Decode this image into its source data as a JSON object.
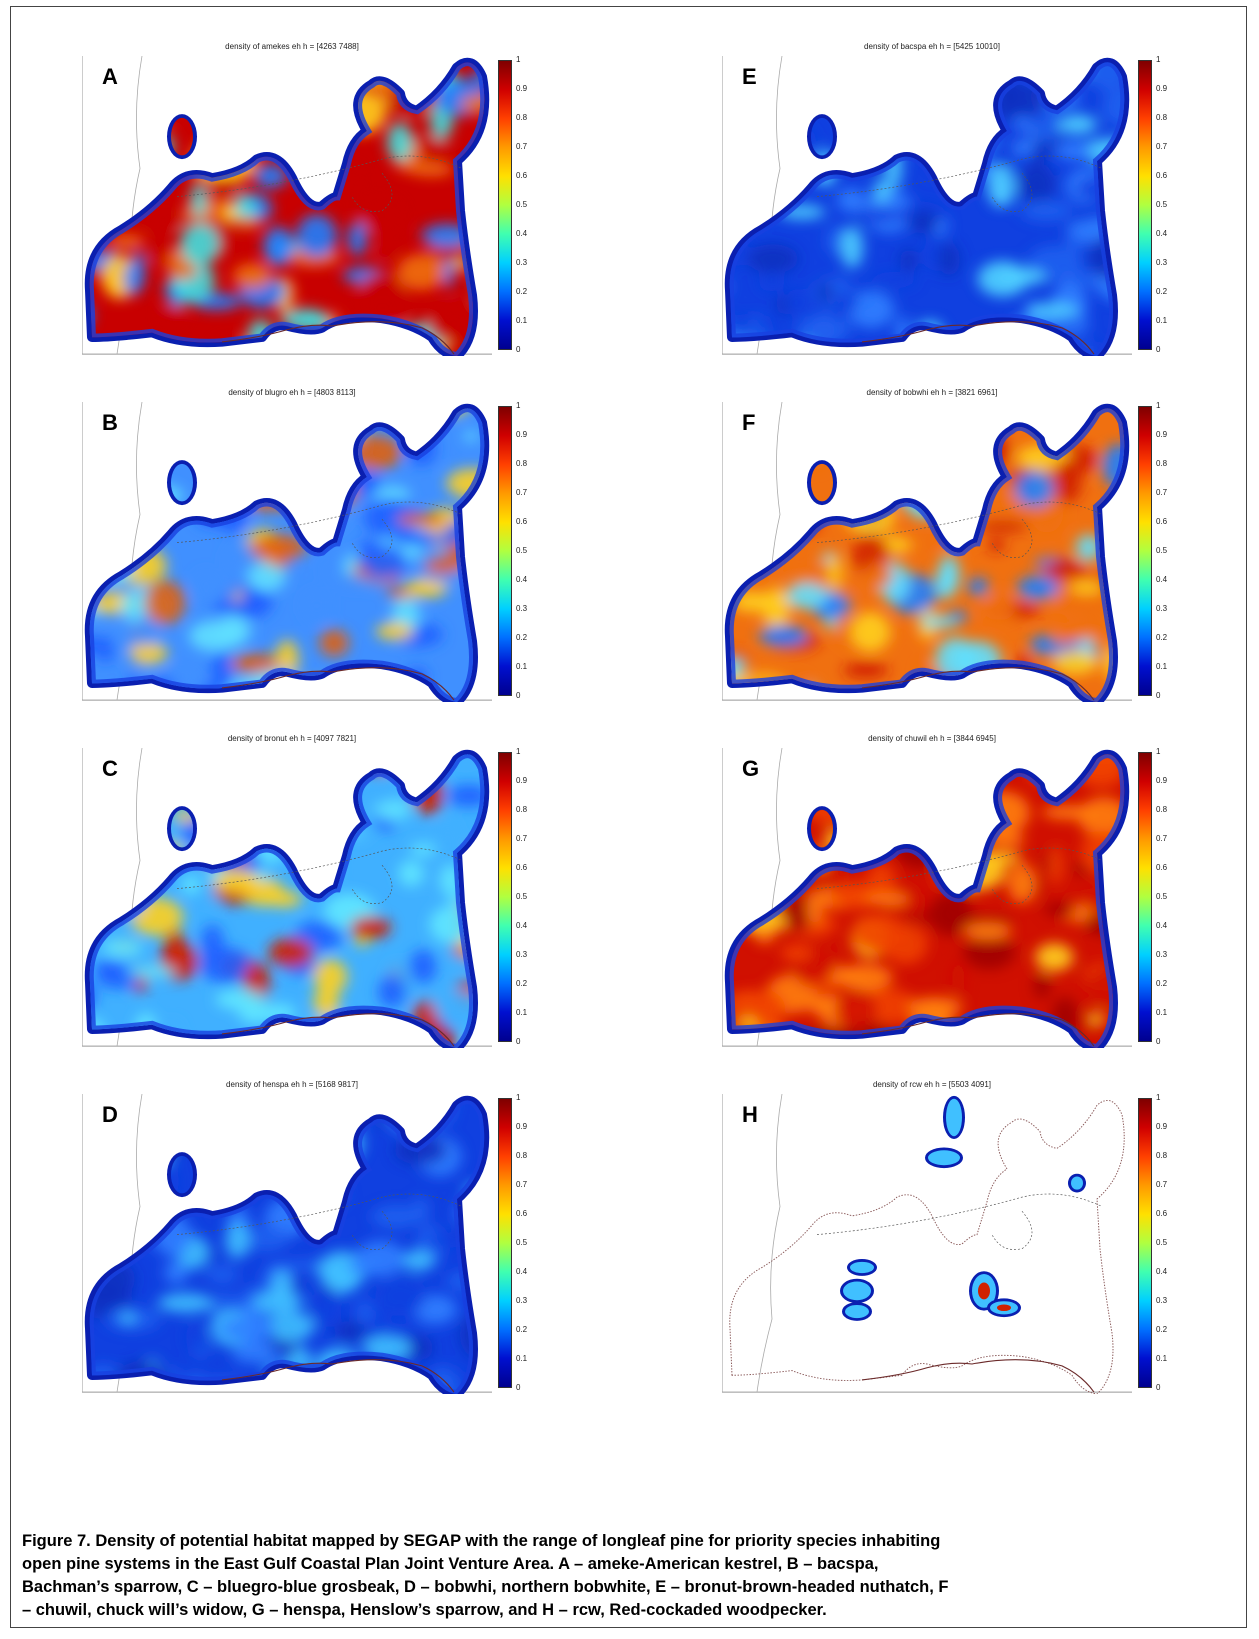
{
  "panels": [
    {
      "id": "A",
      "title": "density of amekes eh h = [4263  7488]",
      "colors": [
        "#c80000",
        "#f07010",
        "#ffd020",
        "#40e0e0",
        "#2080ff"
      ],
      "coverage": "full"
    },
    {
      "id": "B",
      "title": "density of blugro eh h = [4803  8113]",
      "colors": [
        "#4090ff",
        "#60e0ff",
        "#ffd020",
        "#2060ff",
        "#e06010"
      ],
      "coverage": "full"
    },
    {
      "id": "C",
      "title": "density of bronut eh h = [4097  7821]",
      "colors": [
        "#40b0ff",
        "#60e8ff",
        "#2060ff",
        "#ffd020",
        "#d02000"
      ],
      "coverage": "full"
    },
    {
      "id": "D",
      "title": "density of henspa eh h = [5168  9817]",
      "colors": [
        "#1040e0",
        "#2060f0",
        "#3080ff",
        "#1030c0",
        "#40c0ff"
      ],
      "coverage": "full"
    },
    {
      "id": "E",
      "title": "density of bacspa eh h = [5425  10010]",
      "colors": [
        "#1040e0",
        "#2060f0",
        "#3080ff",
        "#1030c0",
        "#50d0ff"
      ],
      "coverage": "full"
    },
    {
      "id": "F",
      "title": "density of bobwhi eh h = [3821  6961]",
      "colors": [
        "#f07010",
        "#ffd020",
        "#d02000",
        "#60e0ff",
        "#2080ff"
      ],
      "coverage": "full"
    },
    {
      "id": "G",
      "title": "density of chuwil eh h = [3844  6945]",
      "colors": [
        "#d01000",
        "#f04000",
        "#a00000",
        "#ff8010",
        "#ffd020"
      ],
      "coverage": "full"
    },
    {
      "id": "H",
      "title": "density of rcw eh h = [5503  4091]",
      "colors": [
        "#1040e0",
        "#40c0ff",
        "#d02000"
      ],
      "coverage": "sparse"
    }
  ],
  "colorbar": {
    "ticks": [
      "1",
      "0.9",
      "0.8",
      "0.7",
      "0.6",
      "0.5",
      "0.4",
      "0.3",
      "0.2",
      "0.1",
      "0"
    ],
    "gradient": [
      "#7f0000",
      "#d00000",
      "#ff4000",
      "#ff9a00",
      "#ffe000",
      "#b0ff40",
      "#40ffb0",
      "#00d0ff",
      "#0070ff",
      "#0010d0",
      "#00008f"
    ]
  },
  "caption": {
    "lines": [
      "Figure 7.  Density of potential habitat mapped by SEGAP with the range of longleaf pine for priority species inhabiting",
      "open pine systems in the East Gulf Coastal Plan Joint Venture Area. A – ameke-American kestrel, B – bacspa,",
      "Bachman’s sparrow, C – bluegro-blue grosbeak, D – bobwhi, northern bobwhite, E – bronut-brown-headed nuthatch, F",
      "– chuwil, chuck will’s widow, G – henspa, Henslow’s sparrow, and H – rcw, Red-cockaded woodpecker."
    ]
  }
}
